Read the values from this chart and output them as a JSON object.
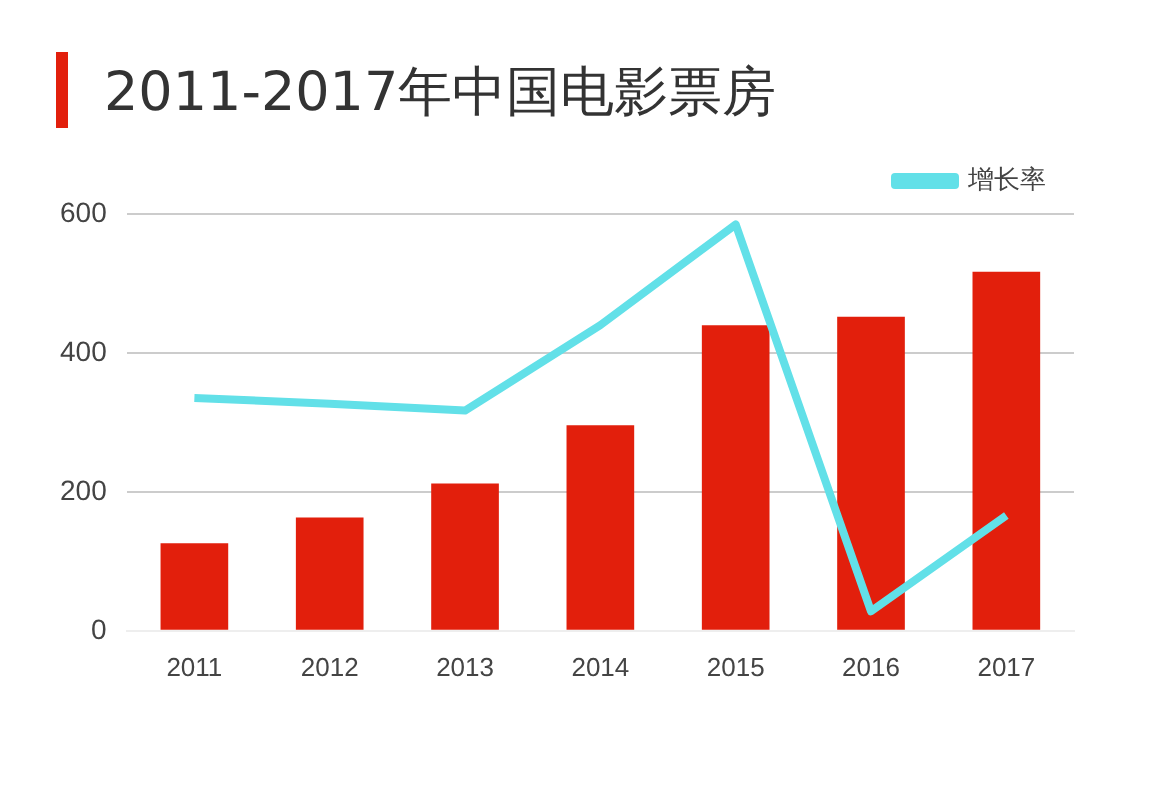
{
  "chart_data": {
    "type": "bar",
    "title": "2011-2017年中国电影票房",
    "categories": [
      "2011",
      "2012",
      "2013",
      "2014",
      "2015",
      "2016",
      "2017"
    ],
    "series": [
      {
        "color": "#e21f0c",
        "values": [
          126,
          163,
          212,
          296,
          440,
          452,
          517
        ]
      },
      {
        "type": "line",
        "name": "增长率",
        "color": "#62e0e8",
        "values": [
          335,
          327,
          317,
          440,
          585,
          28,
          166
        ]
      }
    ],
    "ylim": [
      0,
      600
    ],
    "yticks": [
      0,
      200,
      400,
      600
    ],
    "grid": "y",
    "legend": "top right",
    "marker": "none"
  }
}
